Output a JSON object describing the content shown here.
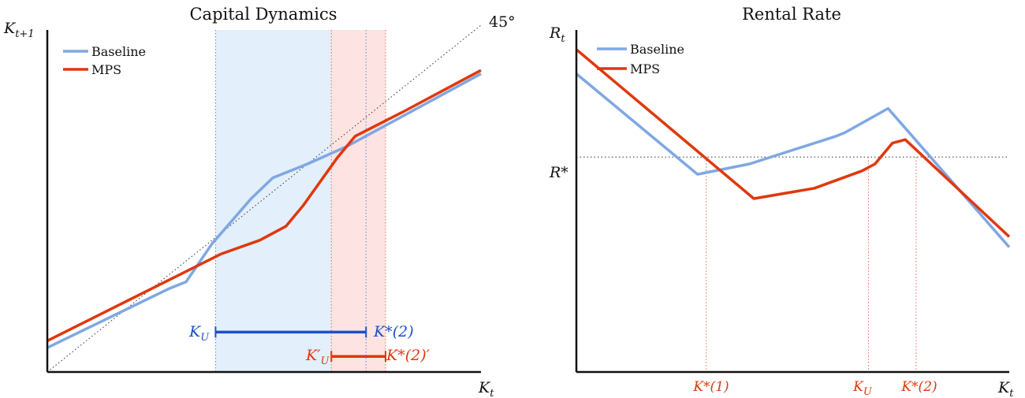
{
  "chart_data": [
    {
      "type": "line",
      "title": "Capital Dynamics",
      "xlabel": "K_t",
      "ylabel": "K_{t+1}",
      "xlim": [
        0,
        100
      ],
      "ylim": [
        0,
        100
      ],
      "annotation_45": "45°",
      "legend": {
        "placement": "top-left",
        "entries": [
          "Baseline",
          "MPS"
        ]
      },
      "series": [
        {
          "name": "Baseline",
          "color": "#7fa7e3",
          "x": [
            0,
            28,
            32,
            38,
            47,
            52,
            60,
            69,
            100
          ],
          "y": [
            7,
            24,
            26,
            37,
            50,
            56,
            60,
            65,
            86
          ]
        },
        {
          "name": "MPS",
          "color": "#e0380c",
          "x": [
            0,
            40,
            49,
            55,
            59,
            67,
            71,
            82,
            100
          ],
          "y": [
            9,
            34,
            38,
            42,
            48,
            62,
            68,
            75,
            87
          ]
        }
      ],
      "shaded_regions": [
        {
          "name": "baseline-region",
          "from": 38.8,
          "to": 73.5,
          "color": "#e3effb"
        },
        {
          "name": "mps-region",
          "from": 65.5,
          "to": 78.0,
          "color": "#fde4e2"
        }
      ],
      "brackets": [
        {
          "name": "baseline",
          "color": "#1b50c6",
          "from": 38.8,
          "to": 73.5,
          "y": 11.5,
          "left_label": "K_U",
          "right_label": "K^*(2)"
        },
        {
          "name": "mps",
          "color": "#e0380c",
          "from": 65.5,
          "to": 78.0,
          "y": 4.5,
          "left_label": "K'_U",
          "right_label": "K^*(2)'"
        }
      ],
      "text": {
        "xlabel_main": "K",
        "xlabel_sub": "t",
        "ylabel_main": "K",
        "ylabel_sub": "t+1",
        "b1_left_main": "K",
        "b1_left_sub": "U",
        "b1_right": "K*(2)",
        "b2_left_main": "K′",
        "b2_left_sub": "U",
        "b2_right": "K*(2)′"
      }
    },
    {
      "type": "line",
      "title": "Rental Rate",
      "xlabel": "K_t",
      "ylabel": "R_t",
      "xlim": [
        0,
        100
      ],
      "ylim": [
        0,
        100
      ],
      "ref_line_label": "R^*",
      "ref_line_y": 62,
      "legend": {
        "placement": "top-left",
        "entries": [
          "Baseline",
          "MPS"
        ]
      },
      "series": [
        {
          "name": "Baseline",
          "color": "#7fa7e3",
          "x": [
            0,
            28,
            40,
            60,
            62,
            72,
            100
          ],
          "y": [
            86,
            57,
            60,
            68,
            69,
            76,
            36
          ]
        },
        {
          "name": "MPS",
          "color": "#e0380c",
          "x": [
            0,
            41,
            55,
            66,
            69,
            73,
            76,
            100
          ],
          "y": [
            93,
            50,
            53,
            58,
            60,
            66,
            67,
            39
          ]
        }
      ],
      "vlines": [
        {
          "x": 30,
          "label": "K^*(1)",
          "text": "K*(1)"
        },
        {
          "x": 67.5,
          "label": "K_U",
          "text_main": "K",
          "text_sub": "U"
        },
        {
          "x": 78.5,
          "label": "K^*(2)",
          "text": "K*(2)"
        }
      ],
      "text": {
        "xlabel_main": "K",
        "xlabel_sub": "t",
        "ylabel_main": "R",
        "ylabel_sub": "t",
        "ref_label": "R*"
      }
    }
  ]
}
